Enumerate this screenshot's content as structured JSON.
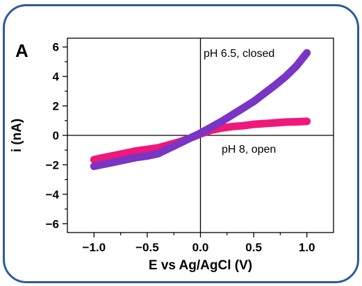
{
  "chart_data": {
    "type": "line",
    "panel_label": "A",
    "xlabel": "E vs Ag/AgCl (V)",
    "ylabel": "i (nA)",
    "xlim": [
      -1.25,
      1.25
    ],
    "ylim": [
      -6.6,
      6.6
    ],
    "xticks": [
      -1.0,
      -0.5,
      0.0,
      0.5,
      1.0
    ],
    "xtick_labels": [
      "−1.0",
      "−0.5",
      "0.0",
      "0.5",
      "1.0"
    ],
    "yticks": [
      -6,
      -4,
      -2,
      0,
      2,
      4,
      6
    ],
    "ytick_labels": [
      "−6",
      "−4",
      "−2",
      "0",
      "2",
      "4",
      "6"
    ],
    "grid": false,
    "series": [
      {
        "name": "pH 8, open",
        "color": "#f0187a",
        "x": [
          -1.0,
          -0.9,
          -0.8,
          -0.7,
          -0.6,
          -0.5,
          -0.4,
          -0.3,
          -0.2,
          -0.1,
          0.0,
          0.1,
          0.2,
          0.3,
          0.4,
          0.5,
          0.6,
          0.7,
          0.8,
          0.9,
          1.0
        ],
        "y": [
          -1.65,
          -1.5,
          -1.35,
          -1.2,
          -1.05,
          -0.95,
          -0.85,
          -0.65,
          -0.45,
          -0.2,
          0.1,
          0.35,
          0.5,
          0.6,
          0.65,
          0.75,
          0.8,
          0.85,
          0.9,
          0.92,
          0.95
        ]
      },
      {
        "name": "pH 6.5, closed",
        "color": "#7a35c4",
        "x": [
          -1.0,
          -0.9,
          -0.8,
          -0.7,
          -0.6,
          -0.5,
          -0.4,
          -0.3,
          -0.2,
          -0.1,
          0.0,
          0.1,
          0.2,
          0.3,
          0.4,
          0.5,
          0.6,
          0.7,
          0.8,
          0.9,
          1.0
        ],
        "y": [
          -2.1,
          -1.95,
          -1.8,
          -1.65,
          -1.5,
          -1.4,
          -1.25,
          -0.9,
          -0.55,
          -0.2,
          0.15,
          0.55,
          0.95,
          1.4,
          1.85,
          2.3,
          2.85,
          3.4,
          4.0,
          4.7,
          5.6
        ]
      }
    ],
    "annotations": [
      "pH 6.5, closed",
      "pH 8, open"
    ]
  }
}
